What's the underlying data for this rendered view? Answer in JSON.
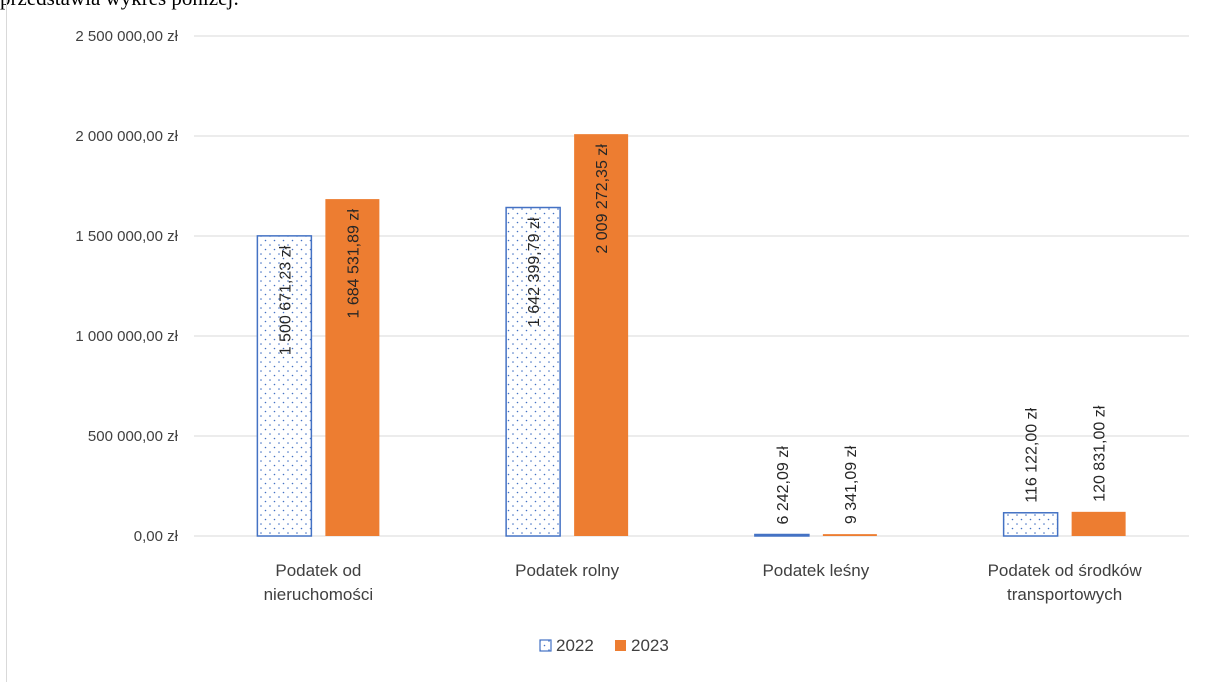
{
  "header": {
    "text": "przedstawia wykres poniżej:"
  },
  "chart_data": {
    "type": "bar",
    "title": "",
    "xlabel": "",
    "ylabel": "",
    "categories": [
      [
        "Podatek od",
        "nieruchomości"
      ],
      [
        "Podatek rolny"
      ],
      [
        "Podatek leśny"
      ],
      [
        "Podatek od środków",
        "transportowych"
      ]
    ],
    "series": [
      {
        "name": "2022",
        "values": [
          1500671.23,
          1642399.79,
          6242.09,
          116122.0
        ],
        "labels": [
          "1 500 671,23 zł",
          "1 642 399,79 zł",
          "6 242,09 zł",
          "116 122,00 zł"
        ],
        "fill": "pattern-dots",
        "color": "#4472c4"
      },
      {
        "name": "2023",
        "values": [
          1684531.89,
          2009272.35,
          9341.09,
          120831.0
        ],
        "labels": [
          "1 684 531,89 zł",
          "2 009 272,35 zł",
          "9 341,09 zł",
          "120 831,00 zł"
        ],
        "fill": "solid",
        "color": "#ed7d31"
      }
    ],
    "ylim": [
      0,
      2500000
    ],
    "yticks": [
      0,
      500000,
      1000000,
      1500000,
      2000000,
      2500000
    ],
    "ytick_labels": [
      "0,00 zł",
      "500 000,00 zł",
      "1 000 000,00 zł",
      "1 500 000,00 zł",
      "2 000 000,00 zł",
      "2 500 000,00 zł"
    ],
    "grid": true,
    "legend": "bottom",
    "gridline_color": "#d9d9d9"
  }
}
